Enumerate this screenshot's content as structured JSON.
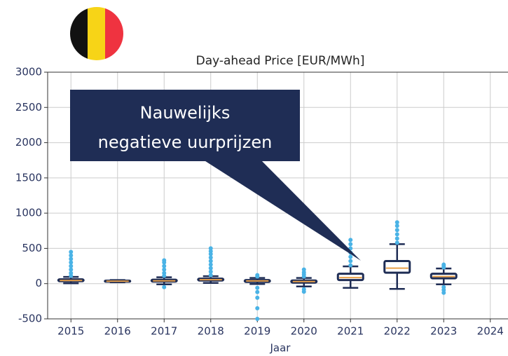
{
  "chart_data": {
    "type": "box",
    "title": "Day-ahead Price [EUR/MWh]",
    "x_label": "Jaar",
    "categories": [
      "2015",
      "2016",
      "2017",
      "2018",
      "2019",
      "2020",
      "2021",
      "2022",
      "2023",
      "2024"
    ],
    "boxes": [
      {
        "whislo": 5,
        "q1": 35,
        "med": 45,
        "q3": 60,
        "whishi": 95,
        "fliers": [
          110,
          150,
          200,
          250,
          300,
          350,
          400,
          450
        ]
      },
      {
        "whislo": 20,
        "q1": 28,
        "med": 35,
        "q3": 42,
        "whishi": 50,
        "fliers": []
      },
      {
        "whislo": -10,
        "q1": 30,
        "med": 40,
        "q3": 55,
        "whishi": 90,
        "fliers": [
          -50,
          110,
          150,
          200,
          250,
          300,
          330
        ]
      },
      {
        "whislo": 10,
        "q1": 45,
        "med": 55,
        "q3": 70,
        "whishi": 105,
        "fliers": [
          120,
          170,
          220,
          270,
          320,
          370,
          420,
          460,
          500
        ]
      },
      {
        "whislo": -5,
        "q1": 25,
        "med": 38,
        "q3": 50,
        "whishi": 80,
        "fliers": [
          -500,
          -350,
          -200,
          -120,
          -60,
          100,
          120
        ]
      },
      {
        "whislo": -40,
        "q1": 15,
        "med": 30,
        "q3": 45,
        "whishi": 80,
        "fliers": [
          -115,
          -80,
          100,
          130,
          160,
          200
        ]
      },
      {
        "whislo": -60,
        "q1": 50,
        "med": 85,
        "q3": 140,
        "whishi": 245,
        "fliers": [
          260,
          320,
          380,
          440,
          500,
          560,
          620
        ]
      },
      {
        "whislo": -75,
        "q1": 155,
        "med": 220,
        "q3": 320,
        "whishi": 560,
        "fliers": [
          580,
          640,
          700,
          760,
          820,
          870
        ]
      },
      {
        "whislo": -10,
        "q1": 75,
        "med": 100,
        "q3": 140,
        "whishi": 215,
        "fliers": [
          -130,
          -90,
          -50,
          230,
          250,
          270
        ]
      },
      null
    ],
    "ylim": [
      -500,
      3000
    ],
    "yticks": [
      -500,
      0,
      500,
      1000,
      1500,
      2000,
      2500,
      3000
    ],
    "grid": true,
    "box_color": "#1f2d55",
    "median_color": "#e8a04a",
    "flier_color": "#4ab3e6",
    "annotation": [
      "Nauwelijks",
      "negatieve uurprijzen"
    ],
    "annotation_color": "#1f2d55"
  }
}
